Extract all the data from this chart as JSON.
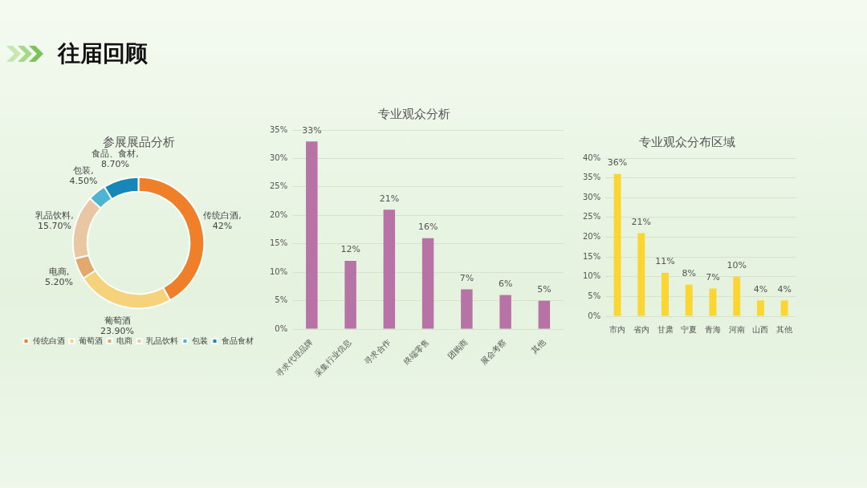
{
  "chart_data": [
    {
      "type": "other",
      "title": "往届回顾"
    },
    {
      "type": "donut",
      "title": "参展展品分析",
      "categories": [
        "传统白酒",
        "葡萄酒",
        "电商",
        "乳品饮料",
        "包装",
        "食品食材"
      ],
      "values": [
        42,
        23.9,
        5.2,
        15.7,
        4.5,
        8.7
      ],
      "colors": [
        "#f07f2a",
        "#f6d27c",
        "#e3a86e",
        "#e8c7a2",
        "#4db5d2",
        "#1787b9"
      ],
      "value_labels": [
        "传统白酒,\n42%",
        "葡萄酒\n23.90%",
        "电商,\n5.20%",
        "乳品饮料,\n15.70%",
        "包装,\n4.50%",
        "食品、食材,\n8.70%"
      ],
      "legend": "bottom"
    },
    {
      "type": "bar",
      "title": "专业观众分析",
      "categories": [
        "寻求代理品牌",
        "采集行业信息",
        "寻求合作",
        "终端零售",
        "团购商",
        "展会考察",
        "其他"
      ],
      "series": [
        {
          "color": "#b873a6",
          "values": [
            33,
            12,
            21,
            16,
            7,
            6,
            5
          ],
          "value_labels": [
            "33%",
            "12%",
            "21%",
            "16%",
            "7%",
            "6%",
            "5%"
          ]
        }
      ],
      "ylim": [
        0,
        35
      ],
      "yticks": [
        {
          "value": 0,
          "label": "0%"
        },
        {
          "value": 5,
          "label": "5%"
        },
        {
          "value": 10,
          "label": "10%"
        },
        {
          "value": 15,
          "label": "15%"
        },
        {
          "value": 20,
          "label": "20%"
        },
        {
          "value": 25,
          "label": "25%"
        },
        {
          "value": 30,
          "label": "30%"
        },
        {
          "value": 35,
          "label": "35%"
        }
      ],
      "grid": "y",
      "legend": false
    },
    {
      "type": "bar",
      "title": "专业观众分布区域",
      "categories": [
        "市内",
        "省内",
        "甘肃",
        "宁夏",
        "青海",
        "河南",
        "山西",
        "其他"
      ],
      "series": [
        {
          "color": "#fbd632",
          "values": [
            36,
            21,
            11,
            8,
            7,
            10,
            4,
            4
          ],
          "value_labels": [
            "36%",
            "21%",
            "11%",
            "8%",
            "7%",
            "10%",
            "4%",
            "4%"
          ]
        }
      ],
      "ylim": [
        0,
        40
      ],
      "yticks": [
        {
          "value": 0,
          "label": "0%"
        },
        {
          "value": 5,
          "label": "5%"
        },
        {
          "value": 10,
          "label": "10%"
        },
        {
          "value": 15,
          "label": "15%"
        },
        {
          "value": 20,
          "label": "20%"
        },
        {
          "value": 25,
          "label": "25%"
        },
        {
          "value": 30,
          "label": "30%"
        },
        {
          "value": 35,
          "label": "35%"
        },
        {
          "value": 40,
          "label": "40%"
        }
      ],
      "grid": "y",
      "legend": false
    }
  ]
}
